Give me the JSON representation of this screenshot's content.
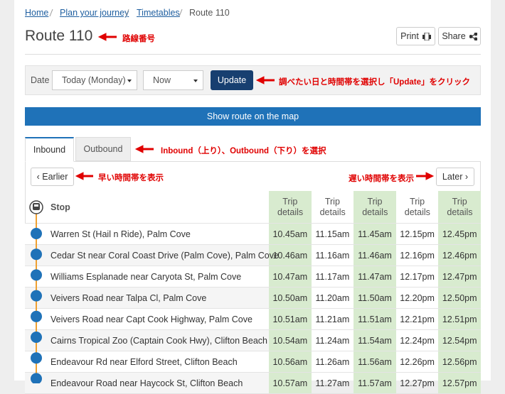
{
  "breadcrumb": [
    "Home",
    "Plan your journey",
    "Timetables",
    "Route 110"
  ],
  "title": "Route 110",
  "actions": [
    "Print",
    "Share"
  ],
  "filter": {
    "label": "Date",
    "date": "Today (Monday)",
    "time": "Now",
    "button": "Update"
  },
  "map_button": "Show route on the map",
  "tabs": [
    "Inbound",
    "Outbound"
  ],
  "paging": {
    "earlier": "‹ Earlier",
    "later": "Later ›"
  },
  "table": {
    "columns": [
      "Stop",
      "Trip details",
      "Trip details",
      "Trip details",
      "Trip details",
      "Trip details"
    ],
    "rows": [
      {
        "stop": "Warren St (Hail n Ride), Palm Cove",
        "times": [
          "10.45am",
          "11.15am",
          "11.45am",
          "12.15pm",
          "12.45pm"
        ]
      },
      {
        "stop": "Cedar St near Coral Coast Drive (Palm Cove), Palm Cove",
        "times": [
          "10.46am",
          "11.16am",
          "11.46am",
          "12.16pm",
          "12.46pm"
        ]
      },
      {
        "stop": "Williams Esplanade near Caryota St, Palm Cove",
        "times": [
          "10.47am",
          "11.17am",
          "11.47am",
          "12.17pm",
          "12.47pm"
        ]
      },
      {
        "stop": "Veivers Road near Talpa Cl, Palm Cove",
        "times": [
          "10.50am",
          "11.20am",
          "11.50am",
          "12.20pm",
          "12.50pm"
        ]
      },
      {
        "stop": "Veivers Road near Capt Cook Highway, Palm Cove",
        "times": [
          "10.51am",
          "11.21am",
          "11.51am",
          "12.21pm",
          "12.51pm"
        ]
      },
      {
        "stop": "Cairns Tropical Zoo (Captain Cook Hwy), Clifton Beach",
        "times": [
          "10.54am",
          "11.24am",
          "11.54am",
          "12.24pm",
          "12.54pm"
        ]
      },
      {
        "stop": "Endeavour Rd near Elford Street, Clifton Beach",
        "times": [
          "10.56am",
          "11.26am",
          "11.56am",
          "12.26pm",
          "12.56pm"
        ]
      },
      {
        "stop": "Endeavour Road near Haycock St, Clifton Beach",
        "times": [
          "10.57am",
          "11.27am",
          "11.57am",
          "12.27pm",
          "12.57pm"
        ]
      }
    ]
  },
  "annotations": {
    "title": "路線番号",
    "update": "調べたい日と時間帯を選択し「Update」をクリック",
    "tabs": "Inbound（上り）、Outbound（下り）を選択",
    "earlier": "早い時間帯を表示",
    "later": "遅い時間帯を表示"
  }
}
